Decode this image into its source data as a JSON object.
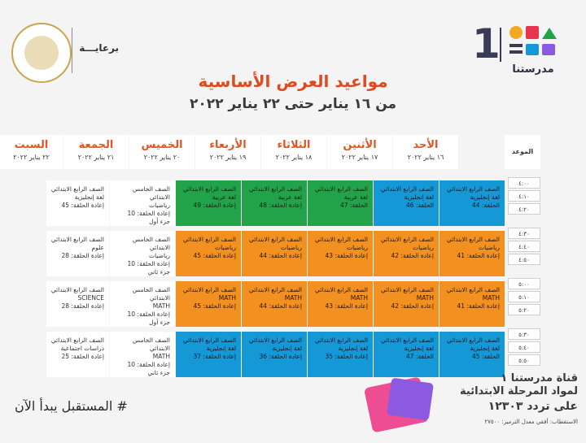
{
  "header": {
    "brand_number": "1",
    "brand_name": "مدرستنا",
    "sponsor_label": "برعايـــة",
    "title": "مواعيد العرض الأساسية",
    "subtitle": "من ١٦ يناير حتى ٢٢ يناير ٢٠٢٢",
    "colors": {
      "title": "#e04a1f",
      "blue": "#1598d6",
      "green": "#22a34a",
      "orange": "#f2911f"
    }
  },
  "table": {
    "time_header": "الموعد",
    "days": [
      {
        "name": "الأحد",
        "date": "١٦ يناير ٢٠٢٢"
      },
      {
        "name": "الأثنين",
        "date": "١٧ يناير ٢٠٢٢"
      },
      {
        "name": "الثلاثاء",
        "date": "١٨ يناير ٢٠٢٢"
      },
      {
        "name": "الأربعاء",
        "date": "١٩ يناير ٢٠٢٢"
      },
      {
        "name": "الخميس",
        "date": "٢٠ يناير ٢٠٢٢"
      },
      {
        "name": "الجمعة",
        "date": "٢١ يناير ٢٠٢٢"
      },
      {
        "name": "السبت",
        "date": "٢٢ يناير ٢٠٢٢"
      }
    ],
    "time_slots": [
      "٤:٠٠",
      "٤:١٠",
      "٤:٢٠",
      "٤:٣٠",
      "٤:٤٠",
      "٤:٥٠",
      "٥:٠٠",
      "٥:١٠",
      "٥:٢٠",
      "٥:٣٠",
      "٥:٤٠",
      "٥:٥٠"
    ],
    "rows": [
      [
        {
          "color": "blue",
          "lines": [
            "الصف الرابع الابتدائي",
            "لغة إنجليزية",
            "الحلقة: 44"
          ]
        },
        {
          "color": "blue",
          "lines": [
            "الصف الرابع الابتدائي",
            "لغة إنجليزية",
            "الحلقة: 46"
          ]
        },
        {
          "color": "green",
          "lines": [
            "الصف الرابع الابتدائي",
            "لغة عربية",
            "الحلقة: 47"
          ]
        },
        {
          "color": "green",
          "lines": [
            "الصف الرابع الابتدائي",
            "لغة عربية",
            "إعادة الحلقة: 48"
          ]
        },
        {
          "color": "green",
          "lines": [
            "الصف الرابع الابتدائي",
            "لغة عربية",
            "إعادة الحلقة: 49"
          ]
        },
        {
          "color": "white",
          "lines": [
            "الصف الخامس الابتدائي",
            "رياضيات",
            "إعادة الحلقة: 10",
            "جزء أول"
          ]
        },
        {
          "color": "white",
          "lines": [
            "الصف الرابع الابتدائي",
            "لغة إنجليزية",
            "إعادة الحلقة: 45"
          ]
        }
      ],
      [
        {
          "color": "orange",
          "lines": [
            "الصف الرابع الابتدائي",
            "رياضيات",
            "إعادة الحلقة: 41"
          ]
        },
        {
          "color": "orange",
          "lines": [
            "الصف الرابع الابتدائي",
            "رياضيات",
            "إعادة الحلقة: 42"
          ]
        },
        {
          "color": "orange",
          "lines": [
            "الصف الرابع الابتدائي",
            "رياضيات",
            "إعادة الحلقة: 43"
          ]
        },
        {
          "color": "orange",
          "lines": [
            "الصف الرابع الابتدائي",
            "رياضيات",
            "إعادة الحلقة: 44"
          ]
        },
        {
          "color": "orange",
          "lines": [
            "الصف الرابع الابتدائي",
            "رياضيات",
            "إعادة الحلقة: 45"
          ]
        },
        {
          "color": "white",
          "lines": [
            "الصف الخامس الابتدائي",
            "رياضيات",
            "إعادة الحلقة: 10",
            "جزء ثاني"
          ]
        },
        {
          "color": "white",
          "lines": [
            "الصف الرابع الابتدائي",
            "علوم",
            "إعادة الحلقة: 28"
          ]
        }
      ],
      [
        {
          "color": "orange",
          "lines": [
            "الصف الرابع الابتدائي",
            "MATH",
            "إعادة الحلقة: 41"
          ]
        },
        {
          "color": "orange",
          "lines": [
            "الصف الرابع الابتدائي",
            "MATH",
            "إعادة الحلقة: 42"
          ]
        },
        {
          "color": "orange",
          "lines": [
            "الصف الرابع الابتدائي",
            "MATH",
            "إعادة الحلقة: 43"
          ]
        },
        {
          "color": "orange",
          "lines": [
            "الصف الرابع الابتدائي",
            "MATH",
            "إعادة الحلقة: 44"
          ]
        },
        {
          "color": "orange",
          "lines": [
            "الصف الرابع الابتدائي",
            "MATH",
            "إعادة الحلقة: 45"
          ]
        },
        {
          "color": "white",
          "lines": [
            "الصف الخامس الابتدائي",
            "MATH",
            "إعادة الحلقة: 10",
            "جزء أول"
          ]
        },
        {
          "color": "white",
          "lines": [
            "الصف الرابع الابتدائي",
            "SCIENCE",
            "إعادة الحلقة: 28"
          ]
        }
      ],
      [
        {
          "color": "blue",
          "lines": [
            "الصف الرابع الابتدائي",
            "لغة إنجليزية",
            "الحلقة: 45"
          ]
        },
        {
          "color": "blue",
          "lines": [
            "الصف الرابع الابتدائي",
            "لغة إنجليزية",
            "الحلقة: 47"
          ]
        },
        {
          "color": "blue",
          "lines": [
            "الصف الرابع الابتدائي",
            "لغة إنجليزية",
            "إعادة الحلقة: 35"
          ]
        },
        {
          "color": "blue",
          "lines": [
            "الصف الرابع الابتدائي",
            "لغة إنجليزية",
            "إعادة الحلقة: 36"
          ]
        },
        {
          "color": "blue",
          "lines": [
            "الصف الرابع الابتدائي",
            "لغة إنجليزية",
            "إعادة الحلقة: 37"
          ]
        },
        {
          "color": "white",
          "lines": [
            "الصف الخامس الابتدائي",
            "MATH",
            "إعادة الحلقة: 10",
            "جزء ثاني"
          ]
        },
        {
          "color": "white",
          "lines": [
            "الصف الرابع الابتدائي",
            "دراسات اجتماعية",
            "إعادة الحلقة: 25"
          ]
        }
      ]
    ]
  },
  "footer": {
    "hashtag": "# المستقبل يبدأ الآن",
    "channel_line1": "قناة مدرستنا ١",
    "channel_line2": "لمواد المرحلة الابتدائية",
    "channel_line3": "على تردد ١٢٣٠٣",
    "channel_line4": "الاستقطاب: أفقي معدل الترميز: ٢٧٥٠٠"
  }
}
